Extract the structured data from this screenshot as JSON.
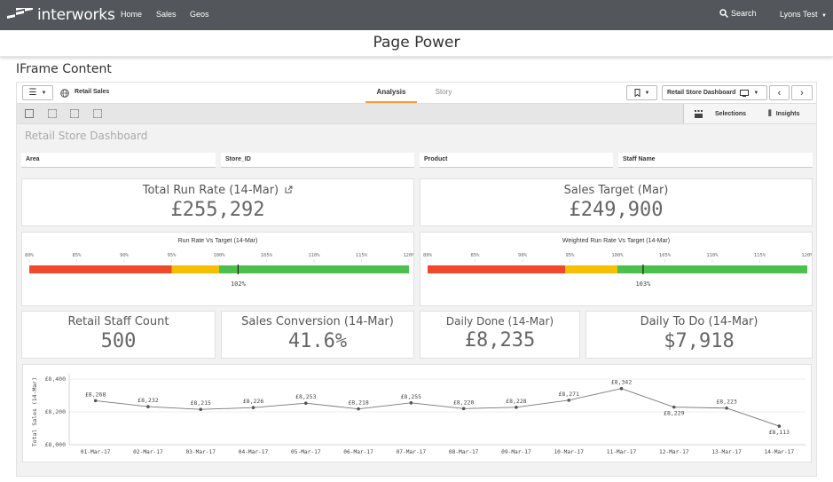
{
  "nav": {
    "brand": "interworks",
    "links": [
      "Home",
      "Sales",
      "Geos"
    ],
    "search_label": "Search",
    "user_label": "Lyons Test"
  },
  "page": {
    "title": "Page Power",
    "section_title": "IFrame Content"
  },
  "app_toolbar": {
    "app_name": "Retail Sales",
    "tabs": [
      "Analysis",
      "Story"
    ],
    "active_tab": "Analysis",
    "sheet_name": "Retail Store Dashboard",
    "selections_label": "Selections",
    "insights_label": "Insights"
  },
  "dashboard": {
    "title": "Retail Store Dashboard",
    "filters": [
      "Area",
      "Store_ID",
      "Product",
      "Staff Name"
    ]
  },
  "kpis": {
    "run_rate_label": "Total Run Rate (14-Mar)",
    "run_rate_value": "£255,292",
    "sales_target_label": "Sales Target (Mar)",
    "sales_target_value": "£249,900",
    "staff_count_label": "Retail Staff Count",
    "staff_count_value": "500",
    "conversion_label": "Sales Conversion (14-Mar)",
    "conversion_value": "41.6%",
    "daily_done_label": "Daily Done (14-Mar)",
    "daily_done_value": "£8,235",
    "daily_todo_label": "Daily To Do (14-Mar)",
    "daily_todo_value": "$7,918"
  },
  "gauges": [
    {
      "title": "Run Rate Vs Target (14-Mar)",
      "ticks": [
        "80%",
        "85%",
        "90%",
        "95%",
        "100%",
        "105%",
        "110%",
        "115%",
        "120%"
      ],
      "min": 80,
      "max": 120,
      "segments": [
        {
          "from": 80,
          "to": 95,
          "color": "#f0492a"
        },
        {
          "from": 95,
          "to": 100,
          "color": "#f6c000"
        },
        {
          "from": 100,
          "to": 120,
          "color": "#4dbf4d"
        }
      ],
      "value": 102,
      "value_label": "102%"
    },
    {
      "title": "Weighted Run Rate Vs Target (14-Mar)",
      "ticks": [
        "80%",
        "85%",
        "90%",
        "95%",
        "100%",
        "105%",
        "110%",
        "115%",
        "120%"
      ],
      "min": 80,
      "max": 120,
      "segments": [
        {
          "from": 80,
          "to": 94.5,
          "color": "#f0492a"
        },
        {
          "from": 94.5,
          "to": 100,
          "color": "#f6c000"
        },
        {
          "from": 100,
          "to": 120,
          "color": "#4dbf4d"
        }
      ],
      "value": 102.7,
      "value_label": "103%"
    }
  ],
  "chart_data": {
    "type": "line",
    "ylabel": "Total Sales (14-Mar)",
    "ylim": [
      8000,
      8400
    ],
    "yticks": [
      8000,
      8200,
      8400
    ],
    "ytick_labels": [
      "£8,000",
      "£8,200",
      "£8,400"
    ],
    "categories": [
      "01-Mar-17",
      "02-Mar-17",
      "03-Mar-17",
      "04-Mar-17",
      "05-Mar-17",
      "06-Mar-17",
      "07-Mar-17",
      "08-Mar-17",
      "09-Mar-17",
      "10-Mar-17",
      "11-Mar-17",
      "12-Mar-17",
      "13-Mar-17",
      "14-Mar-17"
    ],
    "values": [
      8268,
      8232,
      8215,
      8226,
      8253,
      8218,
      8255,
      8220,
      8228,
      8271,
      8342,
      8229,
      8223,
      8113
    ],
    "value_labels": [
      "£8,268",
      "£8,232",
      "£8,215",
      "£8,226",
      "£8,253",
      "£8,218",
      "£8,255",
      "£8,220",
      "£8,228",
      "£8,271",
      "£8,342",
      "£8,229",
      "£8,223",
      "£8,113"
    ],
    "label_below": [
      false,
      false,
      false,
      false,
      false,
      false,
      false,
      false,
      false,
      false,
      false,
      true,
      false,
      true
    ],
    "grid": true,
    "line_color": "#777777"
  }
}
